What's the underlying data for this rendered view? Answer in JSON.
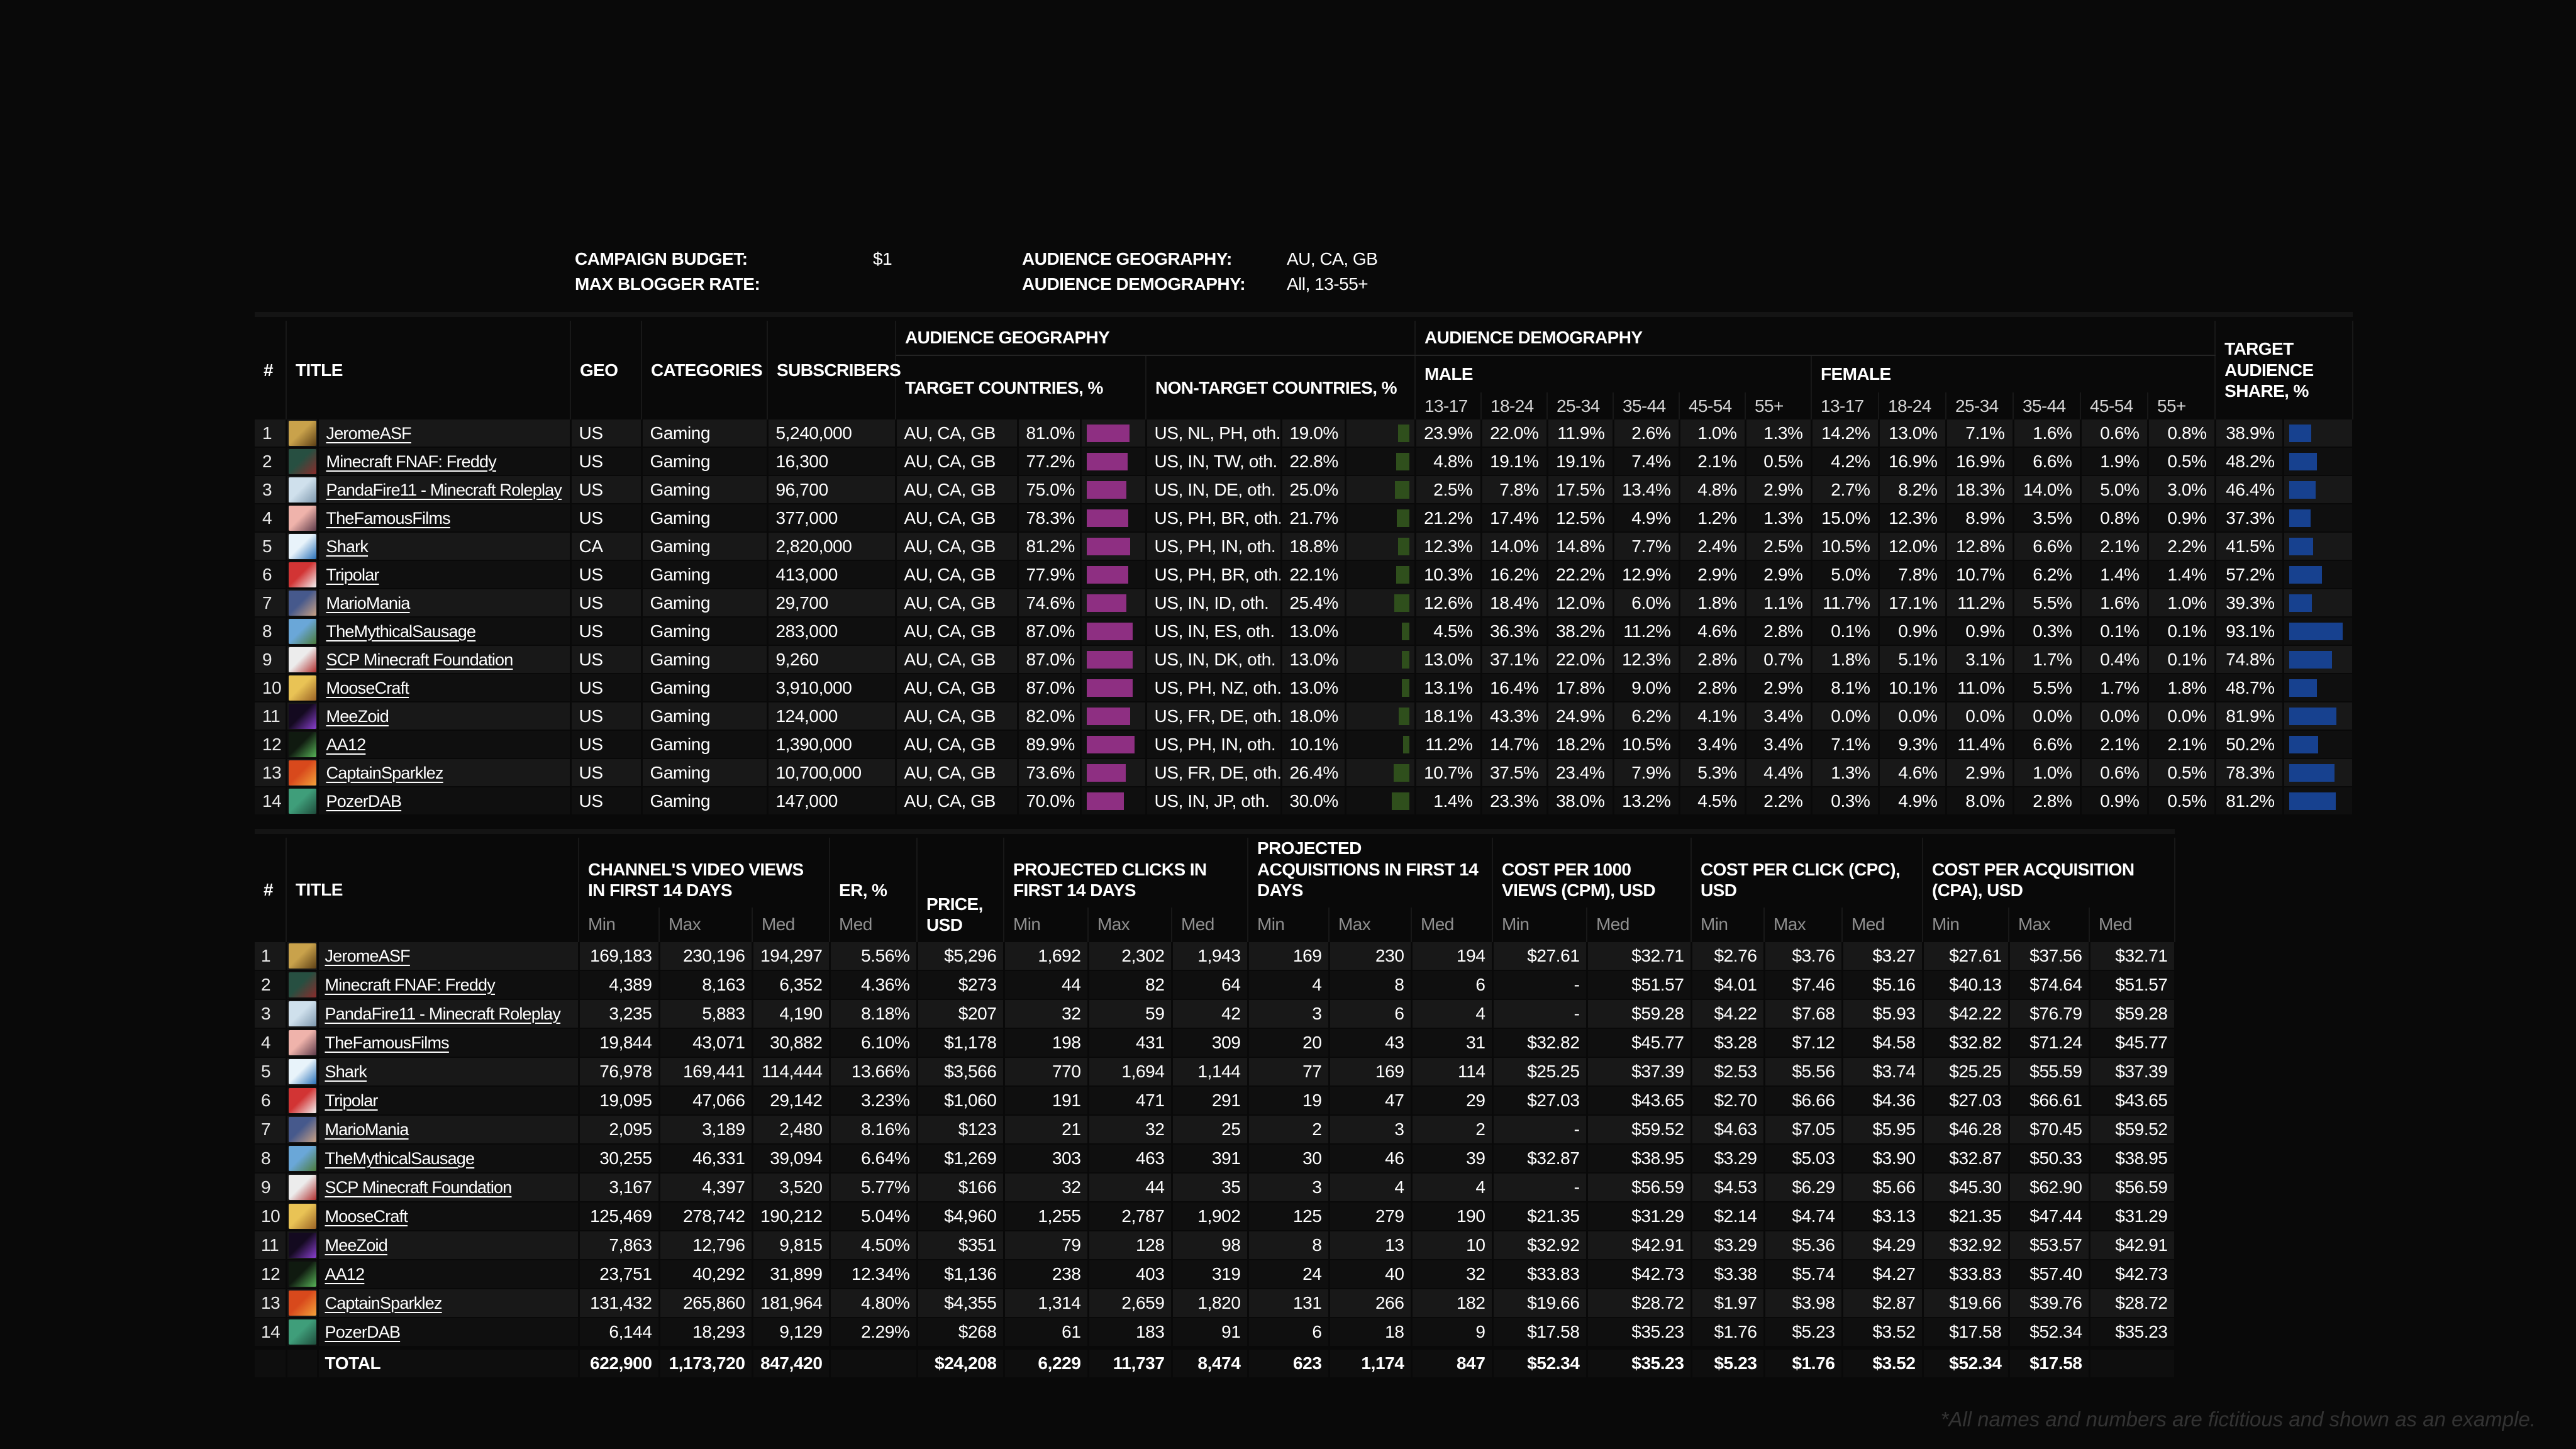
{
  "meta": {
    "campaign_budget_label": "CAMPAIGN BUDGET:",
    "campaign_budget_value": "$1",
    "max_blogger_rate_label": "MAX BLOGGER RATE:",
    "max_blogger_rate_value": "",
    "audience_geography_label": "AUDIENCE GEOGRAPHY:",
    "audience_geography_value": "AU, CA, GB",
    "audience_demography_label": "AUDIENCE DEMOGRAPHY:",
    "audience_demography_value": "All, 13-55+"
  },
  "colors": {
    "target_bar_magenta": "#8e2f82",
    "non_target_bar_green": "#2f4f1c",
    "share_bar_blue": "#17418f"
  },
  "table1": {
    "headers": {
      "num": "#",
      "title": "TITLE",
      "geo": "GEO",
      "categories": "CATEGORIES",
      "subscribers": "SUBSCRIBERS",
      "audience_geography": "AUDIENCE GEOGRAPHY",
      "audience_demography": "AUDIENCE DEMOGRAPHY",
      "target_countries": "TARGET COUNTRIES, %",
      "non_target_countries": "NON-TARGET COUNTRIES, %",
      "male": "MALE",
      "female": "FEMALE",
      "target_share": "TARGET AUDIENCE SHARE, %"
    },
    "age_groups": [
      "13-17",
      "18-24",
      "25-34",
      "35-44",
      "45-54",
      "55+"
    ],
    "rows": [
      {
        "n": "1",
        "title": "JeromeASF",
        "geo": "US",
        "cat": "Gaming",
        "subs": "5,240,000",
        "tc": "AU, CA, GB",
        "tp": "81.0%",
        "nc": "US, NL, PH, oth.",
        "np": "19.0%",
        "m0": "23.9%",
        "m1": "22.0%",
        "m2": "11.9%",
        "m3": "2.6%",
        "m4": "1.0%",
        "m5": "1.3%",
        "f0": "14.2%",
        "f1": "13.0%",
        "f2": "7.1%",
        "f3": "1.6%",
        "f4": "0.6%",
        "f5": "0.8%",
        "sp": "38.9%",
        "av": [
          "#c9a24b",
          "#5d4016"
        ]
      },
      {
        "n": "2",
        "title": "Minecraft FNAF: Freddy",
        "geo": "US",
        "cat": "Gaming",
        "subs": "16,300",
        "tc": "AU, CA, GB",
        "tp": "77.2%",
        "nc": "US, IN, TW, oth.",
        "np": "22.8%",
        "m0": "4.8%",
        "m1": "19.1%",
        "m2": "19.1%",
        "m3": "7.4%",
        "m4": "2.1%",
        "m5": "0.5%",
        "f0": "4.2%",
        "f1": "16.9%",
        "f2": "16.9%",
        "f3": "6.6%",
        "f4": "1.9%",
        "f5": "0.5%",
        "sp": "48.2%",
        "av": [
          "#274f41",
          "#8a2b2b"
        ]
      },
      {
        "n": "3",
        "title": "PandaFire11 - Minecraft Roleplay",
        "geo": "US",
        "cat": "Gaming",
        "subs": "96,700",
        "tc": "AU, CA, GB",
        "tp": "75.0%",
        "nc": "US, IN, DE, oth.",
        "np": "25.0%",
        "m0": "2.5%",
        "m1": "7.8%",
        "m2": "17.5%",
        "m3": "13.4%",
        "m4": "4.8%",
        "m5": "2.9%",
        "f0": "2.7%",
        "f1": "8.2%",
        "f2": "18.3%",
        "f3": "14.0%",
        "f4": "5.0%",
        "f5": "3.0%",
        "sp": "46.4%",
        "av": [
          "#cfe0ec",
          "#7d97ad"
        ]
      },
      {
        "n": "4",
        "title": "TheFamousFilms",
        "geo": "US",
        "cat": "Gaming",
        "subs": "377,000",
        "tc": "AU, CA, GB",
        "tp": "78.3%",
        "nc": "US, PH, BR, oth.",
        "np": "21.7%",
        "m0": "21.2%",
        "m1": "17.4%",
        "m2": "12.5%",
        "m3": "4.9%",
        "m4": "1.2%",
        "m5": "1.3%",
        "f0": "15.0%",
        "f1": "12.3%",
        "f2": "8.9%",
        "f3": "3.5%",
        "f4": "0.8%",
        "f5": "0.9%",
        "sp": "37.3%",
        "av": [
          "#efb3ab",
          "#5e3b4a"
        ]
      },
      {
        "n": "5",
        "title": "Shark",
        "geo": "CA",
        "cat": "Gaming",
        "subs": "2,820,000",
        "tc": "AU, CA, GB",
        "tp": "81.2%",
        "nc": "US, PH, IN, oth.",
        "np": "18.8%",
        "m0": "12.3%",
        "m1": "14.0%",
        "m2": "14.8%",
        "m3": "7.7%",
        "m4": "2.4%",
        "m5": "2.5%",
        "f0": "10.5%",
        "f1": "12.0%",
        "f2": "12.8%",
        "f3": "6.6%",
        "f4": "2.1%",
        "f5": "2.2%",
        "sp": "41.5%",
        "av": [
          "#e8f3fa",
          "#2a71b8"
        ]
      },
      {
        "n": "6",
        "title": "Tripolar",
        "geo": "US",
        "cat": "Gaming",
        "subs": "413,000",
        "tc": "AU, CA, GB",
        "tp": "77.9%",
        "nc": "US, PH, BR, oth.",
        "np": "22.1%",
        "m0": "10.3%",
        "m1": "16.2%",
        "m2": "22.2%",
        "m3": "12.9%",
        "m4": "2.9%",
        "m5": "2.9%",
        "f0": "5.0%",
        "f1": "7.8%",
        "f2": "10.7%",
        "f3": "6.2%",
        "f4": "1.4%",
        "f5": "1.4%",
        "sp": "57.2%",
        "av": [
          "#d23434",
          "#f2f2f2"
        ]
      },
      {
        "n": "7",
        "title": "MarioMania",
        "geo": "US",
        "cat": "Gaming",
        "subs": "29,700",
        "tc": "AU, CA, GB",
        "tp": "74.6%",
        "nc": "US, IN, ID, oth.",
        "np": "25.4%",
        "m0": "12.6%",
        "m1": "18.4%",
        "m2": "12.0%",
        "m3": "6.0%",
        "m4": "1.8%",
        "m5": "1.1%",
        "f0": "11.7%",
        "f1": "17.1%",
        "f2": "11.2%",
        "f3": "5.5%",
        "f4": "1.6%",
        "f5": "1.0%",
        "sp": "39.3%",
        "av": [
          "#46598c",
          "#c9a184"
        ]
      },
      {
        "n": "8",
        "title": "TheMythicalSausage",
        "geo": "US",
        "cat": "Gaming",
        "subs": "283,000",
        "tc": "AU, CA, GB",
        "tp": "87.0%",
        "nc": "US, IN, ES, oth.",
        "np": "13.0%",
        "m0": "4.5%",
        "m1": "36.3%",
        "m2": "38.2%",
        "m3": "11.2%",
        "m4": "4.6%",
        "m5": "2.8%",
        "f0": "0.1%",
        "f1": "0.9%",
        "f2": "0.9%",
        "f3": "0.3%",
        "f4": "0.1%",
        "f5": "0.1%",
        "sp": "93.1%",
        "av": [
          "#6aa7d8",
          "#4b7a3a"
        ]
      },
      {
        "n": "9",
        "title": "SCP Minecraft Foundation",
        "geo": "US",
        "cat": "Gaming",
        "subs": "9,260",
        "tc": "AU, CA, GB",
        "tp": "87.0%",
        "nc": "US, IN, DK, oth.",
        "np": "13.0%",
        "m0": "13.0%",
        "m1": "37.1%",
        "m2": "22.0%",
        "m3": "12.3%",
        "m4": "2.8%",
        "m5": "0.7%",
        "f0": "1.8%",
        "f1": "5.1%",
        "f2": "3.1%",
        "f3": "1.7%",
        "f4": "0.4%",
        "f5": "0.1%",
        "sp": "74.8%",
        "av": [
          "#ececec",
          "#b03030"
        ]
      },
      {
        "n": "10",
        "title": "MooseCraft",
        "geo": "US",
        "cat": "Gaming",
        "subs": "3,910,000",
        "tc": "AU, CA, GB",
        "tp": "87.0%",
        "nc": "US, PH, NZ, oth.",
        "np": "13.0%",
        "m0": "13.1%",
        "m1": "16.4%",
        "m2": "17.8%",
        "m3": "9.0%",
        "m4": "2.8%",
        "m5": "2.9%",
        "f0": "8.1%",
        "f1": "10.1%",
        "f2": "11.0%",
        "f3": "5.5%",
        "f4": "1.7%",
        "f5": "1.8%",
        "sp": "48.7%",
        "av": [
          "#e9c355",
          "#9a6224"
        ]
      },
      {
        "n": "11",
        "title": "MeeZoid",
        "geo": "US",
        "cat": "Gaming",
        "subs": "124,000",
        "tc": "AU, CA, GB",
        "tp": "82.0%",
        "nc": "US, FR, DE, oth.",
        "np": "18.0%",
        "m0": "18.1%",
        "m1": "43.3%",
        "m2": "24.9%",
        "m3": "6.2%",
        "m4": "4.1%",
        "m5": "3.4%",
        "f0": "0.0%",
        "f1": "0.0%",
        "f2": "0.0%",
        "f3": "0.0%",
        "f4": "0.0%",
        "f5": "0.0%",
        "sp": "81.9%",
        "av": [
          "#140a20",
          "#8a3fd0"
        ]
      },
      {
        "n": "12",
        "title": "AA12",
        "geo": "US",
        "cat": "Gaming",
        "subs": "1,390,000",
        "tc": "AU, CA, GB",
        "tp": "89.9%",
        "nc": "US, PH, IN, oth.",
        "np": "10.1%",
        "m0": "11.2%",
        "m1": "14.7%",
        "m2": "18.2%",
        "m3": "10.5%",
        "m4": "3.4%",
        "m5": "3.4%",
        "f0": "7.1%",
        "f1": "9.3%",
        "f2": "11.4%",
        "f3": "6.6%",
        "f4": "2.1%",
        "f5": "2.1%",
        "sp": "50.2%",
        "av": [
          "#101a10",
          "#57b457"
        ]
      },
      {
        "n": "13",
        "title": "CaptainSparklez",
        "geo": "US",
        "cat": "Gaming",
        "subs": "10,700,000",
        "tc": "AU, CA, GB",
        "tp": "73.6%",
        "nc": "US, FR, DE, oth.",
        "np": "26.4%",
        "m0": "10.7%",
        "m1": "37.5%",
        "m2": "23.4%",
        "m3": "7.9%",
        "m4": "5.3%",
        "m5": "4.4%",
        "f0": "1.3%",
        "f1": "4.6%",
        "f2": "2.9%",
        "f3": "1.0%",
        "f4": "0.6%",
        "f5": "0.5%",
        "sp": "78.3%",
        "av": [
          "#d8491c",
          "#f2a23a"
        ]
      },
      {
        "n": "14",
        "title": "PozerDAB",
        "geo": "US",
        "cat": "Gaming",
        "subs": "147,000",
        "tc": "AU, CA, GB",
        "tp": "70.0%",
        "nc": "US, IN, JP, oth.",
        "np": "30.0%",
        "m0": "1.4%",
        "m1": "23.3%",
        "m2": "38.0%",
        "m3": "13.2%",
        "m4": "4.5%",
        "m5": "2.2%",
        "f0": "0.3%",
        "f1": "4.9%",
        "f2": "8.0%",
        "f3": "2.8%",
        "f4": "0.9%",
        "f5": "0.5%",
        "sp": "81.2%",
        "av": [
          "#3f9e7a",
          "#1f4d3c"
        ]
      }
    ]
  },
  "table2": {
    "headers": {
      "num": "#",
      "title": "TITLE",
      "views": "CHANNEL'S VIDEO VIEWS IN FIRST 14 DAYS",
      "er": "ER, %",
      "price": "PRICE, USD",
      "clicks": "PROJECTED CLICKS IN FIRST 14 DAYS",
      "acquisitions": "PROJECTED ACQUISITIONS IN FIRST 14 DAYS",
      "cpm": "COST PER 1000 VIEWS (CPM), USD",
      "cpc": "COST PER CLICK (CPC), USD",
      "cpa": "COST PER ACQUISITION (CPA), USD",
      "min": "Min",
      "max": "Max",
      "med": "Med",
      "total": "TOTAL"
    },
    "rows": [
      {
        "n": "1",
        "title": "JeromeASF",
        "vmin": "169,183",
        "vmax": "230,196",
        "vmed": "194,297",
        "er": "5.56%",
        "price": "$5,296",
        "cmin": "1,692",
        "cmax": "2,302",
        "cmed": "1,943",
        "amin": "169",
        "amax": "230",
        "amed": "194",
        "pmmin": "$27.61",
        "pmmed": "$32.71",
        "pcmin": "$2.76",
        "pcmax": "$3.76",
        "pcmed": "$3.27",
        "pamin": "$27.61",
        "pamax": "$37.56",
        "pamed": "$32.71",
        "av": [
          "#c9a24b",
          "#5d4016"
        ]
      },
      {
        "n": "2",
        "title": "Minecraft FNAF: Freddy",
        "vmin": "4,389",
        "vmax": "8,163",
        "vmed": "6,352",
        "er": "4.36%",
        "price": "$273",
        "cmin": "44",
        "cmax": "82",
        "cmed": "64",
        "amin": "4",
        "amax": "8",
        "amed": "6",
        "pmmin": "-",
        "pmmed": "$51.57",
        "pcmin": "$4.01",
        "pcmax": "$7.46",
        "pcmed": "$5.16",
        "pamin": "$40.13",
        "pamax": "$74.64",
        "pamed": "$51.57",
        "av": [
          "#274f41",
          "#8a2b2b"
        ]
      },
      {
        "n": "3",
        "title": "PandaFire11 - Minecraft Roleplay",
        "vmin": "3,235",
        "vmax": "5,883",
        "vmed": "4,190",
        "er": "8.18%",
        "price": "$207",
        "cmin": "32",
        "cmax": "59",
        "cmed": "42",
        "amin": "3",
        "amax": "6",
        "amed": "4",
        "pmmin": "-",
        "pmmed": "$59.28",
        "pcmin": "$4.22",
        "pcmax": "$7.68",
        "pcmed": "$5.93",
        "pamin": "$42.22",
        "pamax": "$76.79",
        "pamed": "$59.28",
        "av": [
          "#cfe0ec",
          "#7d97ad"
        ]
      },
      {
        "n": "4",
        "title": "TheFamousFilms",
        "vmin": "19,844",
        "vmax": "43,071",
        "vmed": "30,882",
        "er": "6.10%",
        "price": "$1,178",
        "cmin": "198",
        "cmax": "431",
        "cmed": "309",
        "amin": "20",
        "amax": "43",
        "amed": "31",
        "pmmin": "$32.82",
        "pmmed": "$45.77",
        "pcmin": "$3.28",
        "pcmax": "$7.12",
        "pcmed": "$4.58",
        "pamin": "$32.82",
        "pamax": "$71.24",
        "pamed": "$45.77",
        "av": [
          "#efb3ab",
          "#5e3b4a"
        ]
      },
      {
        "n": "5",
        "title": "Shark",
        "vmin": "76,978",
        "vmax": "169,441",
        "vmed": "114,444",
        "er": "13.66%",
        "price": "$3,566",
        "cmin": "770",
        "cmax": "1,694",
        "cmed": "1,144",
        "amin": "77",
        "amax": "169",
        "amed": "114",
        "pmmin": "$25.25",
        "pmmed": "$37.39",
        "pcmin": "$2.53",
        "pcmax": "$5.56",
        "pcmed": "$3.74",
        "pamin": "$25.25",
        "pamax": "$55.59",
        "pamed": "$37.39",
        "av": [
          "#e8f3fa",
          "#2a71b8"
        ]
      },
      {
        "n": "6",
        "title": "Tripolar",
        "vmin": "19,095",
        "vmax": "47,066",
        "vmed": "29,142",
        "er": "3.23%",
        "price": "$1,060",
        "cmin": "191",
        "cmax": "471",
        "cmed": "291",
        "amin": "19",
        "amax": "47",
        "amed": "29",
        "pmmin": "$27.03",
        "pmmed": "$43.65",
        "pcmin": "$2.70",
        "pcmax": "$6.66",
        "pcmed": "$4.36",
        "pamin": "$27.03",
        "pamax": "$66.61",
        "pamed": "$43.65",
        "av": [
          "#d23434",
          "#f2f2f2"
        ]
      },
      {
        "n": "7",
        "title": "MarioMania",
        "vmin": "2,095",
        "vmax": "3,189",
        "vmed": "2,480",
        "er": "8.16%",
        "price": "$123",
        "cmin": "21",
        "cmax": "32",
        "cmed": "25",
        "amin": "2",
        "amax": "3",
        "amed": "2",
        "pmmin": "-",
        "pmmed": "$59.52",
        "pcmin": "$4.63",
        "pcmax": "$7.05",
        "pcmed": "$5.95",
        "pamin": "$46.28",
        "pamax": "$70.45",
        "pamed": "$59.52",
        "av": [
          "#46598c",
          "#c9a184"
        ]
      },
      {
        "n": "8",
        "title": "TheMythicalSausage",
        "vmin": "30,255",
        "vmax": "46,331",
        "vmed": "39,094",
        "er": "6.64%",
        "price": "$1,269",
        "cmin": "303",
        "cmax": "463",
        "cmed": "391",
        "amin": "30",
        "amax": "46",
        "amed": "39",
        "pmmin": "$32.87",
        "pmmed": "$38.95",
        "pcmin": "$3.29",
        "pcmax": "$5.03",
        "pcmed": "$3.90",
        "pamin": "$32.87",
        "pamax": "$50.33",
        "pamed": "$38.95",
        "av": [
          "#6aa7d8",
          "#4b7a3a"
        ]
      },
      {
        "n": "9",
        "title": "SCP Minecraft Foundation",
        "vmin": "3,167",
        "vmax": "4,397",
        "vmed": "3,520",
        "er": "5.77%",
        "price": "$166",
        "cmin": "32",
        "cmax": "44",
        "cmed": "35",
        "amin": "3",
        "amax": "4",
        "amed": "4",
        "pmmin": "-",
        "pmmed": "$56.59",
        "pcmin": "$4.53",
        "pcmax": "$6.29",
        "pcmed": "$5.66",
        "pamin": "$45.30",
        "pamax": "$62.90",
        "pamed": "$56.59",
        "av": [
          "#ececec",
          "#b03030"
        ]
      },
      {
        "n": "10",
        "title": "MooseCraft",
        "vmin": "125,469",
        "vmax": "278,742",
        "vmed": "190,212",
        "er": "5.04%",
        "price": "$4,960",
        "cmin": "1,255",
        "cmax": "2,787",
        "cmed": "1,902",
        "amin": "125",
        "amax": "279",
        "amed": "190",
        "pmmin": "$21.35",
        "pmmed": "$31.29",
        "pcmin": "$2.14",
        "pcmax": "$4.74",
        "pcmed": "$3.13",
        "pamin": "$21.35",
        "pamax": "$47.44",
        "pamed": "$31.29",
        "av": [
          "#e9c355",
          "#9a6224"
        ]
      },
      {
        "n": "11",
        "title": "MeeZoid",
        "vmin": "7,863",
        "vmax": "12,796",
        "vmed": "9,815",
        "er": "4.50%",
        "price": "$351",
        "cmin": "79",
        "cmax": "128",
        "cmed": "98",
        "amin": "8",
        "amax": "13",
        "amed": "10",
        "pmmin": "$32.92",
        "pmmed": "$42.91",
        "pcmin": "$3.29",
        "pcmax": "$5.36",
        "pcmed": "$4.29",
        "pamin": "$32.92",
        "pamax": "$53.57",
        "pamed": "$42.91",
        "av": [
          "#140a20",
          "#8a3fd0"
        ]
      },
      {
        "n": "12",
        "title": "AA12",
        "vmin": "23,751",
        "vmax": "40,292",
        "vmed": "31,899",
        "er": "12.34%",
        "price": "$1,136",
        "cmin": "238",
        "cmax": "403",
        "cmed": "319",
        "amin": "24",
        "amax": "40",
        "amed": "32",
        "pmmin": "$33.83",
        "pmmed": "$42.73",
        "pcmin": "$3.38",
        "pcmax": "$5.74",
        "pcmed": "$4.27",
        "pamin": "$33.83",
        "pamax": "$57.40",
        "pamed": "$42.73",
        "av": [
          "#101a10",
          "#57b457"
        ]
      },
      {
        "n": "13",
        "title": "CaptainSparklez",
        "vmin": "131,432",
        "vmax": "265,860",
        "vmed": "181,964",
        "er": "4.80%",
        "price": "$4,355",
        "cmin": "1,314",
        "cmax": "2,659",
        "cmed": "1,820",
        "amin": "131",
        "amax": "266",
        "amed": "182",
        "pmmin": "$19.66",
        "pmmed": "$28.72",
        "pcmin": "$1.97",
        "pcmax": "$3.98",
        "pcmed": "$2.87",
        "pamin": "$19.66",
        "pamax": "$39.76",
        "pamed": "$28.72",
        "av": [
          "#d8491c",
          "#f2a23a"
        ]
      },
      {
        "n": "14",
        "title": "PozerDAB",
        "vmin": "6,144",
        "vmax": "18,293",
        "vmed": "9,129",
        "er": "2.29%",
        "price": "$268",
        "cmin": "61",
        "cmax": "183",
        "cmed": "91",
        "amin": "6",
        "amax": "18",
        "amed": "9",
        "pmmin": "$17.58",
        "pmmed": "$35.23",
        "pcmin": "$1.76",
        "pcmax": "$5.23",
        "pcmed": "$3.52",
        "pamin": "$17.58",
        "pamax": "$52.34",
        "pamed": "$35.23",
        "av": [
          "#3f9e7a",
          "#1f4d3c"
        ]
      }
    ],
    "total": {
      "label": "TOTAL",
      "vmin": "622,900",
      "vmax": "1,173,720",
      "vmed": "847,420",
      "er": "",
      "price": "$24,208",
      "cmin": "6,229",
      "cmax": "11,737",
      "cmed": "8,474",
      "amin": "623",
      "amax": "1,174",
      "amed": "847",
      "pmmin": "$52.34",
      "pmmed": "$35.23",
      "pcmin": "$5.23",
      "pcmax": "$1.76",
      "pcmed": "$3.52",
      "pamin": "$52.34",
      "pamax": "$17.58",
      "pamed": ""
    }
  },
  "footnote": "*All names and numbers are fictitious and shown as an example."
}
